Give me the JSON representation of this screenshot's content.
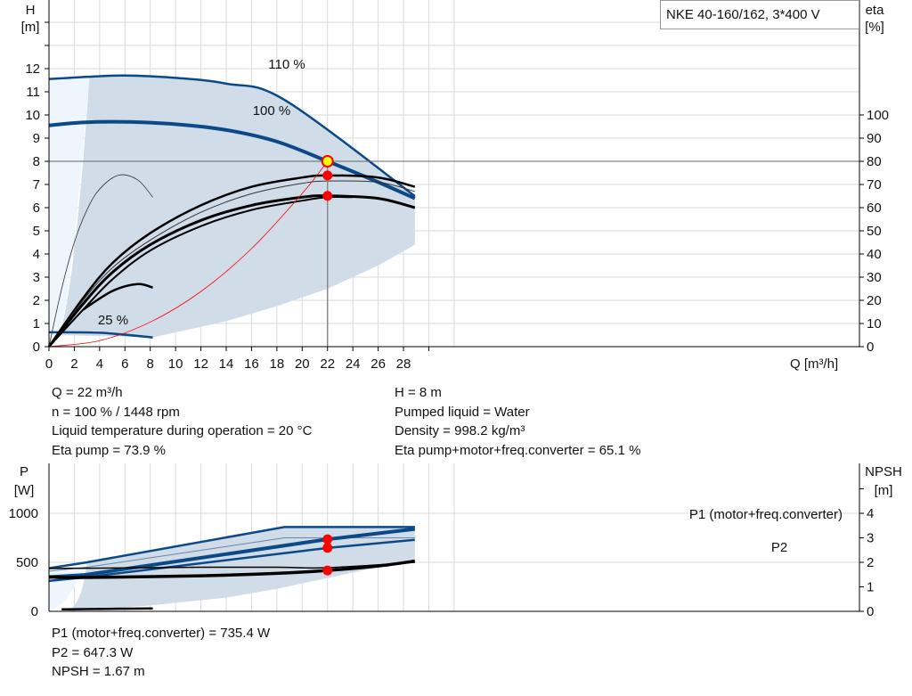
{
  "title": "NKE 40-160/162, 3*400 V",
  "colors": {
    "curve": "#0b4a87",
    "shade": "#d0dce8",
    "shade_light": "#eef5fc",
    "duty": "#ff0000",
    "duty_point": "#ffff00",
    "efficiency": "#000000"
  },
  "chart_data": [
    {
      "type": "line",
      "xlabel": "Q [m³/h]",
      "x_unit": "Q [m³/h]",
      "xlim": [
        0,
        32
      ],
      "xticks": [
        0,
        2,
        4,
        6,
        8,
        10,
        12,
        14,
        16,
        18,
        20,
        22,
        24,
        26,
        28
      ],
      "ylabel_left": "H",
      "ylabel_left_unit": "[m]",
      "ylim": [
        0,
        15
      ],
      "yticks_left": [
        0,
        1,
        2,
        3,
        4,
        5,
        6,
        7,
        8,
        9,
        10,
        11,
        12
      ],
      "ylabel_right": "eta",
      "ylabel_right_unit": "[%]",
      "yticks_right": [
        0,
        10,
        20,
        30,
        40,
        50,
        60,
        70,
        80,
        90,
        100
      ],
      "grid": true,
      "annotations": [
        "110 %",
        "100 %",
        "25 %"
      ],
      "series": [
        {
          "name": "110 %",
          "kind": "head",
          "points": [
            [
              0,
              11.55
            ],
            [
              3.2,
              11.65
            ],
            [
              6,
              11.7
            ],
            [
              10,
              11.6
            ],
            [
              14,
              11.35
            ],
            [
              18.6,
              10.65
            ],
            [
              28.9,
              6.5
            ]
          ]
        },
        {
          "name": "100 %",
          "kind": "head",
          "points": [
            [
              0,
              9.55
            ],
            [
              2.7,
              9.68
            ],
            [
              6,
              9.7
            ],
            [
              10,
              9.6
            ],
            [
              14,
              9.35
            ],
            [
              18,
              8.85
            ],
            [
              22,
              8.0
            ],
            [
              26,
              7.1
            ],
            [
              28.9,
              6.4
            ]
          ]
        },
        {
          "name": "25 %",
          "kind": "head",
          "points": [
            [
              0,
              0.62
            ],
            [
              4,
              0.6
            ],
            [
              8.2,
              0.4
            ]
          ]
        },
        {
          "kind": "eta_pump",
          "points": [
            [
              0,
              0
            ],
            [
              2.7,
              2.1
            ],
            [
              5,
              3.6
            ],
            [
              8,
              4.9
            ],
            [
              12,
              6.1
            ],
            [
              16,
              6.9
            ],
            [
              20,
              7.3
            ],
            [
              22,
              7.39
            ],
            [
              26,
              7.3
            ],
            [
              28.9,
              6.9
            ]
          ]
        },
        {
          "kind": "eta_thin",
          "points": [
            [
              0,
              0
            ],
            [
              2.7,
              2.0
            ],
            [
              5,
              3.4
            ],
            [
              8,
              4.6
            ],
            [
              12,
              5.8
            ],
            [
              16,
              6.6
            ],
            [
              20,
              7.05
            ],
            [
              22,
              7.15
            ],
            [
              26,
              7.1
            ],
            [
              28.9,
              6.7
            ]
          ]
        },
        {
          "kind": "eta_total",
          "points": [
            [
              0,
              0
            ],
            [
              2.7,
              1.85
            ],
            [
              5,
              3.2
            ],
            [
              8,
              4.4
            ],
            [
              12,
              5.45
            ],
            [
              16,
              6.1
            ],
            [
              20,
              6.45
            ],
            [
              22,
              6.51
            ],
            [
              26,
              6.4
            ],
            [
              28.9,
              6.0
            ]
          ]
        },
        {
          "kind": "eta_lower",
          "points": [
            [
              0,
              0
            ],
            [
              2.7,
              1.6
            ],
            [
              5,
              2.9
            ],
            [
              8,
              4.15
            ],
            [
              12,
              5.2
            ],
            [
              16,
              5.9
            ],
            [
              20,
              6.3
            ],
            [
              22,
              6.45
            ],
            [
              24,
              6.45
            ]
          ]
        },
        {
          "kind": "eta_partial",
          "points": [
            [
              2.7,
              1.6
            ],
            [
              5,
              2.4
            ],
            [
              7,
              2.7
            ],
            [
              8.2,
              2.55
            ]
          ]
        },
        {
          "kind": "eta_thin_peak",
          "points": [
            [
              0,
              0
            ],
            [
              1,
              2.5
            ],
            [
              2,
              4.5
            ],
            [
              3,
              5.9
            ],
            [
              4,
              6.8
            ],
            [
              5.5,
              7.4
            ],
            [
              7,
              7.2
            ],
            [
              8.2,
              6.45
            ]
          ]
        },
        {
          "kind": "system_curve",
          "points": [
            [
              0,
              0
            ],
            [
              4,
              0.26
            ],
            [
              8,
              1.06
            ],
            [
              12,
              2.38
            ],
            [
              16,
              4.23
            ],
            [
              20,
              6.61
            ],
            [
              22,
              8.0
            ]
          ]
        }
      ],
      "lower_bound": [
        [
          0.8,
          0.5
        ],
        [
          8.2,
          0.4
        ],
        [
          14,
          1.1
        ],
        [
          18,
          1.75
        ],
        [
          22,
          2.5
        ],
        [
          26,
          3.5
        ],
        [
          28.9,
          4.4
        ]
      ],
      "duty_point": {
        "Q": 22,
        "H": 8,
        "eta_pump": 73.9,
        "eta_total": 65.1
      }
    },
    {
      "type": "line",
      "xlim": [
        0,
        32
      ],
      "ylabel_left": "P",
      "ylabel_left_unit": "[W]",
      "yticks_left": [
        0,
        500,
        1000
      ],
      "ylim": [
        0,
        1500
      ],
      "ylabel_right": "NPSH",
      "ylabel_right_unit": "[m]",
      "yticks_right": [
        0,
        1,
        2,
        3,
        4
      ],
      "grid": true,
      "series": [
        {
          "name": "P1 (motor+freq.converter)",
          "kind": "p1_110",
          "points": [
            [
              0,
              440
            ],
            [
              3,
              500
            ],
            [
              18.6,
              860
            ],
            [
              28.9,
              860
            ]
          ]
        },
        {
          "kind": "p1_thin",
          "points": [
            [
              0,
              410
            ],
            [
              3,
              450
            ],
            [
              18.6,
              750
            ],
            [
              28.9,
              750
            ]
          ]
        },
        {
          "name": "P1 (motor+freq.converter)",
          "kind": "p1",
          "points": [
            [
              0,
              350
            ],
            [
              2.7,
              370
            ],
            [
              22,
              735
            ],
            [
              28.9,
              840
            ]
          ]
        },
        {
          "name": "P2",
          "kind": "p2",
          "points": [
            [
              0,
              310
            ],
            [
              2.7,
              345
            ],
            [
              22,
              647
            ],
            [
              28.9,
              730
            ]
          ]
        },
        {
          "kind": "npsh",
          "unit": "m",
          "points": [
            [
              0,
              1.4
            ],
            [
              2.7,
              1.38
            ],
            [
              12,
              1.45
            ],
            [
              18,
              1.55
            ],
            [
              22,
              1.67
            ],
            [
              26,
              1.85
            ],
            [
              28.9,
              2.05
            ]
          ]
        },
        {
          "kind": "npsh_thin",
          "unit": "m",
          "points": [
            [
              0,
              1.75
            ],
            [
              3,
              1.76
            ],
            [
              12,
              1.8
            ],
            [
              18,
              1.8
            ],
            [
              22,
              1.78
            ],
            [
              28.9,
              2.0
            ]
          ]
        },
        {
          "kind": "p_low",
          "points": [
            [
              1,
              20
            ],
            [
              8.2,
              30
            ]
          ]
        }
      ],
      "lower_bound": [
        [
          1.5,
          0
        ],
        [
          8,
          60
        ],
        [
          14,
          140
        ],
        [
          18,
          230
        ],
        [
          22,
          340
        ],
        [
          26,
          450
        ],
        [
          28.9,
          530
        ]
      ],
      "duty_points": {
        "P1": 735.4,
        "P2": 647.3,
        "NPSH": 1.67
      }
    }
  ],
  "info": {
    "left": [
      "Q = 22 m³/h",
      "n = 100 % / 1448 rpm",
      "Liquid temperature during operation = 20 °C",
      "Eta pump = 73.9 %"
    ],
    "right": [
      "H = 8 m",
      "Pumped liquid = Water",
      "Density = 998.2 kg/m³",
      "Eta pump+motor+freq.converter = 65.1 %"
    ],
    "bottom": [
      "P1 (motor+freq.converter) = 735.4 W",
      "P2 = 647.3 W",
      "NPSH = 1.67 m"
    ]
  }
}
